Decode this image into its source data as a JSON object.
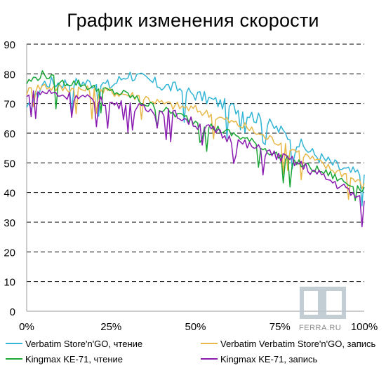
{
  "chart_data": {
    "type": "line",
    "title": "График изменения скорости",
    "xlim": [
      0,
      100
    ],
    "ylim": [
      0,
      90
    ],
    "x_ticks": [
      "0%",
      "25%",
      "50%",
      "75%",
      "100%"
    ],
    "y_ticks": [
      "0",
      "10",
      "20",
      "30",
      "40",
      "50",
      "60",
      "70",
      "80",
      "90"
    ],
    "grid": "horizontal dashed",
    "legend": "bottom",
    "x": [
      0,
      5,
      10,
      15,
      20,
      25,
      30,
      35,
      40,
      45,
      50,
      55,
      60,
      65,
      70,
      75,
      80,
      85,
      90,
      95,
      100
    ],
    "series": [
      {
        "name": "Verbatim Store'n'GO, чтение",
        "color": "#33b5d5",
        "values": [
          67,
          77,
          77,
          77,
          77,
          76,
          80,
          78,
          76,
          75,
          73,
          71,
          69,
          67,
          64,
          61,
          57,
          53,
          50,
          47,
          46
        ]
      },
      {
        "name": "Verbatim Verbatim Store'n'GO, запись",
        "color": "#e8b84a",
        "values": [
          74,
          76,
          75,
          75,
          74,
          74,
          73,
          72,
          70,
          69,
          68,
          66,
          64,
          62,
          59,
          57,
          54,
          51,
          48,
          46,
          42
        ]
      },
      {
        "name": "Kingmax KE-71, чтение",
        "color": "#1aa635",
        "values": [
          77,
          80,
          77,
          77,
          75,
          74,
          73,
          70,
          68,
          66,
          64,
          62,
          60,
          58,
          55,
          52,
          50,
          48,
          46,
          43,
          41
        ]
      },
      {
        "name": "Kingmax KE-71, запись",
        "color": "#8a1bb0",
        "values": [
          72,
          74,
          73,
          72,
          71,
          70,
          69,
          68,
          67,
          66,
          63,
          61,
          58,
          56,
          54,
          52,
          50,
          47,
          44,
          41,
          36
        ]
      }
    ]
  },
  "watermark": {
    "text": "FERRA.RU"
  }
}
